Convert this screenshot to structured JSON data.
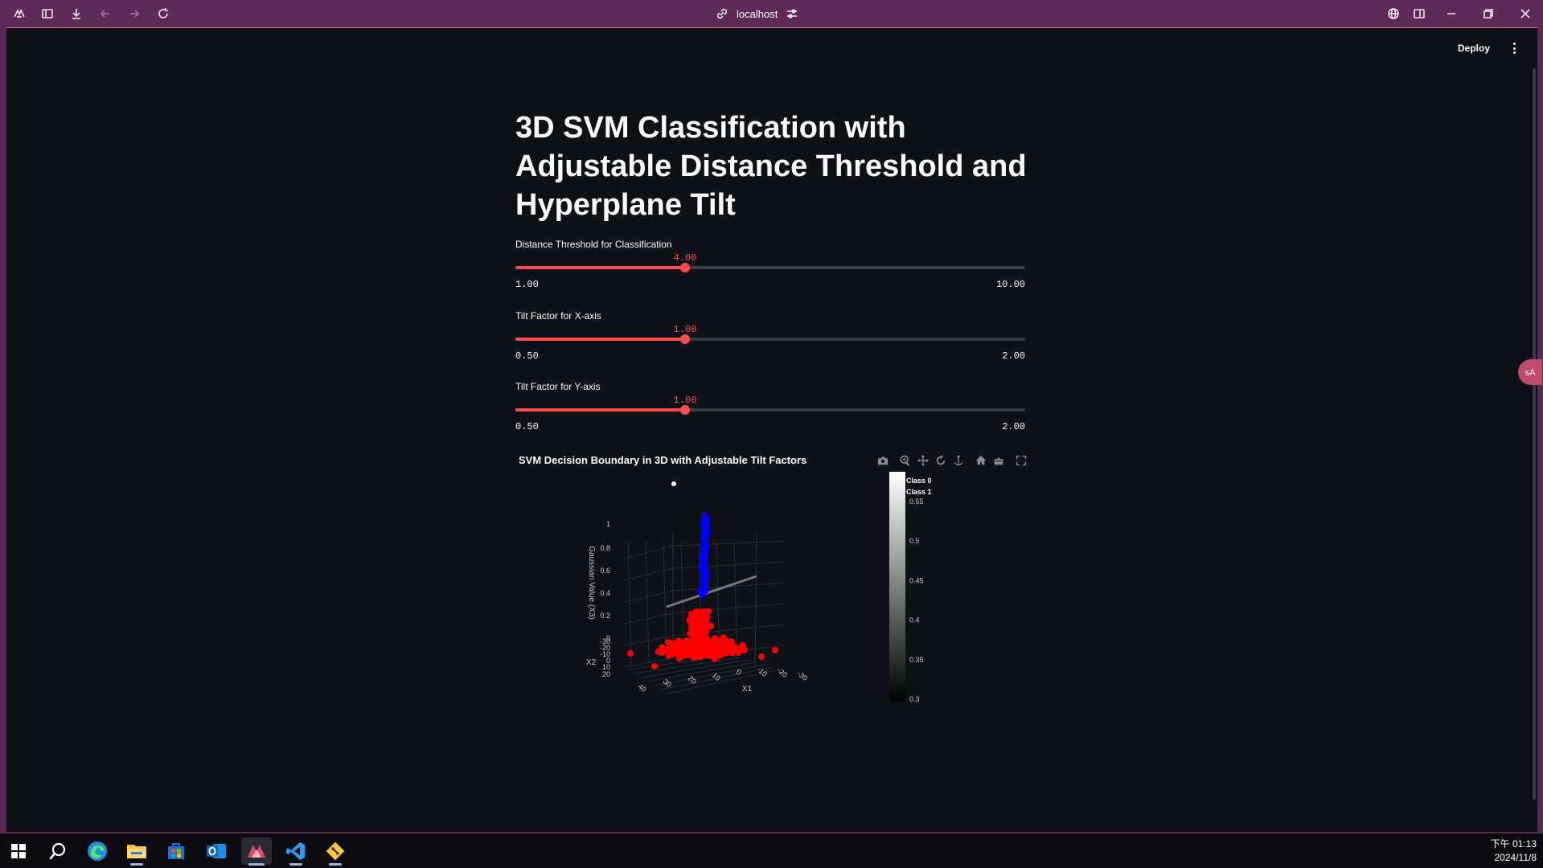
{
  "browser": {
    "address": "localhost",
    "icons": [
      "app-menu-icon",
      "sidebar-icon",
      "download-icon",
      "back-icon",
      "forward-icon",
      "reload-icon",
      "link-icon",
      "site-settings-icon",
      "translate-icon",
      "split-view-icon",
      "minimize-icon",
      "restore-icon",
      "close-icon"
    ]
  },
  "app": {
    "deploy_label": "Deploy",
    "title": "3D SVM Classification with Adjustable Distance Threshold and Hyperplane Tilt",
    "side_badge": "ꜱA"
  },
  "sliders": [
    {
      "label": "Distance Threshold for Classification",
      "value": "4.00",
      "min": "1.00",
      "max": "10.00",
      "fraction": 0.3333
    },
    {
      "label": "Tilt Factor for X-axis",
      "value": "1.00",
      "min": "0.50",
      "max": "2.00",
      "fraction": 0.3333
    },
    {
      "label": "Tilt Factor for Y-axis",
      "value": "1.00",
      "min": "0.50",
      "max": "2.00",
      "fraction": 0.3333
    }
  ],
  "chart_data": {
    "type": "scatter",
    "title": "SVM Decision Boundary in 3D with Adjustable Tilt Factors",
    "xlabel": "X1",
    "ylabel": "X2",
    "zlabel": "Gaussian Value (X3)",
    "x_ticks": [
      "40",
      "30",
      "20",
      "10",
      "0",
      "-10",
      "-20",
      "-30"
    ],
    "y_ticks": [
      "-30",
      "-20",
      "-10",
      "0",
      "10",
      "20"
    ],
    "z_ticks": [
      "0",
      "0.2",
      "0.4",
      "0.6",
      "0.8",
      "1"
    ],
    "legend": [
      "Class 0",
      "Class 1"
    ],
    "colorbar_ticks": [
      "0.55",
      "0.5",
      "0.45",
      "0.4",
      "0.35",
      "0.3"
    ],
    "colorbar_range": [
      0.3,
      0.55
    ],
    "colors": {
      "class_0": "#ff0000",
      "class_1": "#0000ff"
    },
    "series": [
      {
        "name": "Class 0",
        "color": "#ff0000",
        "description": "points with Gaussian value below about 0.4"
      },
      {
        "name": "Class 1",
        "color": "#0000ff",
        "description": "points with Gaussian value above about 0.4"
      }
    ]
  },
  "modebar": [
    "camera-icon",
    "zoom-icon",
    "pan-icon",
    "orbit-icon",
    "turntable-icon",
    "reset-camera-icon",
    "default-view-icon",
    "fullscreen-icon"
  ],
  "taskbar": {
    "icons": [
      "start-icon",
      "search-icon",
      "edge-icon",
      "file-explorer-icon",
      "store-icon",
      "outlook-icon",
      "browser-app-icon",
      "vscode-icon",
      "git-icon"
    ],
    "time": "下午 01:13",
    "date": "2024/11/8"
  }
}
